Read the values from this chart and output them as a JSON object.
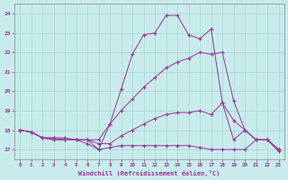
{
  "xlabel": "Windchill (Refroidissement éolien,°C)",
  "background_color": "#c8ecec",
  "line_color": "#993399",
  "grid_color": "#aad4d4",
  "xlim": [
    -0.5,
    23.5
  ],
  "ylim": [
    16.5,
    24.5
  ],
  "yticks": [
    17,
    18,
    19,
    20,
    21,
    22,
    23,
    24
  ],
  "xticks": [
    0,
    1,
    2,
    3,
    4,
    5,
    6,
    7,
    8,
    9,
    10,
    11,
    12,
    13,
    14,
    15,
    16,
    17,
    18,
    19,
    20,
    21,
    22,
    23
  ],
  "series": [
    [
      18.0,
      17.9,
      17.6,
      17.6,
      17.5,
      17.5,
      17.5,
      17.0,
      17.1,
      17.2,
      17.2,
      17.2,
      17.2,
      17.2,
      17.2,
      17.2,
      17.1,
      17.0,
      17.0,
      17.0,
      17.0,
      17.5,
      17.5,
      16.9
    ],
    [
      18.0,
      17.9,
      17.6,
      17.6,
      17.6,
      17.5,
      17.5,
      17.3,
      17.3,
      17.7,
      18.0,
      18.3,
      18.6,
      18.8,
      18.9,
      18.9,
      19.0,
      18.8,
      19.4,
      18.5,
      18.0,
      17.5,
      17.5,
      17.0
    ],
    [
      18.0,
      17.9,
      17.6,
      17.5,
      17.5,
      17.5,
      17.5,
      17.5,
      18.3,
      19.0,
      19.6,
      20.2,
      20.7,
      21.2,
      21.5,
      21.7,
      22.0,
      21.9,
      22.0,
      19.5,
      18.0,
      17.5,
      17.5,
      17.0
    ],
    [
      18.0,
      17.9,
      17.6,
      17.5,
      17.5,
      17.5,
      17.3,
      17.0,
      18.3,
      20.1,
      21.9,
      22.9,
      23.0,
      23.9,
      23.9,
      22.9,
      22.7,
      23.2,
      19.4,
      17.5,
      18.0,
      17.5,
      17.5,
      17.0
    ]
  ]
}
